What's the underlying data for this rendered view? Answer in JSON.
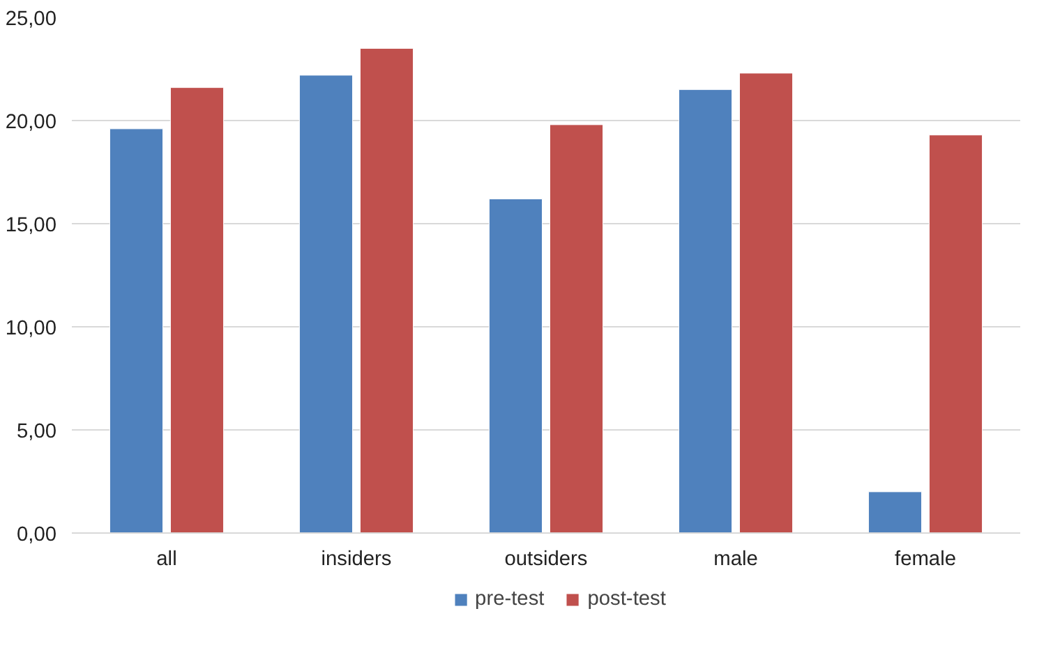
{
  "chart_data": {
    "type": "bar",
    "categories": [
      "all",
      "insiders",
      "outsiders",
      "male",
      "female"
    ],
    "series": [
      {
        "name": "pre-test",
        "color": "#4f81bd",
        "values": [
          19.6,
          22.2,
          16.2,
          21.5,
          2.0
        ]
      },
      {
        "name": "post-test",
        "color": "#c0504d",
        "values": [
          21.6,
          23.5,
          19.8,
          22.3,
          19.3
        ]
      }
    ],
    "ylim": [
      0,
      25
    ],
    "yticks": [
      {
        "value": 0,
        "label": "0,00"
      },
      {
        "value": 5,
        "label": "5,00"
      },
      {
        "value": 10,
        "label": "10,00"
      },
      {
        "value": 15,
        "label": "15,00"
      },
      {
        "value": 20,
        "label": "20,00"
      },
      {
        "value": 25,
        "label": "25,00"
      }
    ],
    "grid": "y",
    "legend": "bottom"
  }
}
